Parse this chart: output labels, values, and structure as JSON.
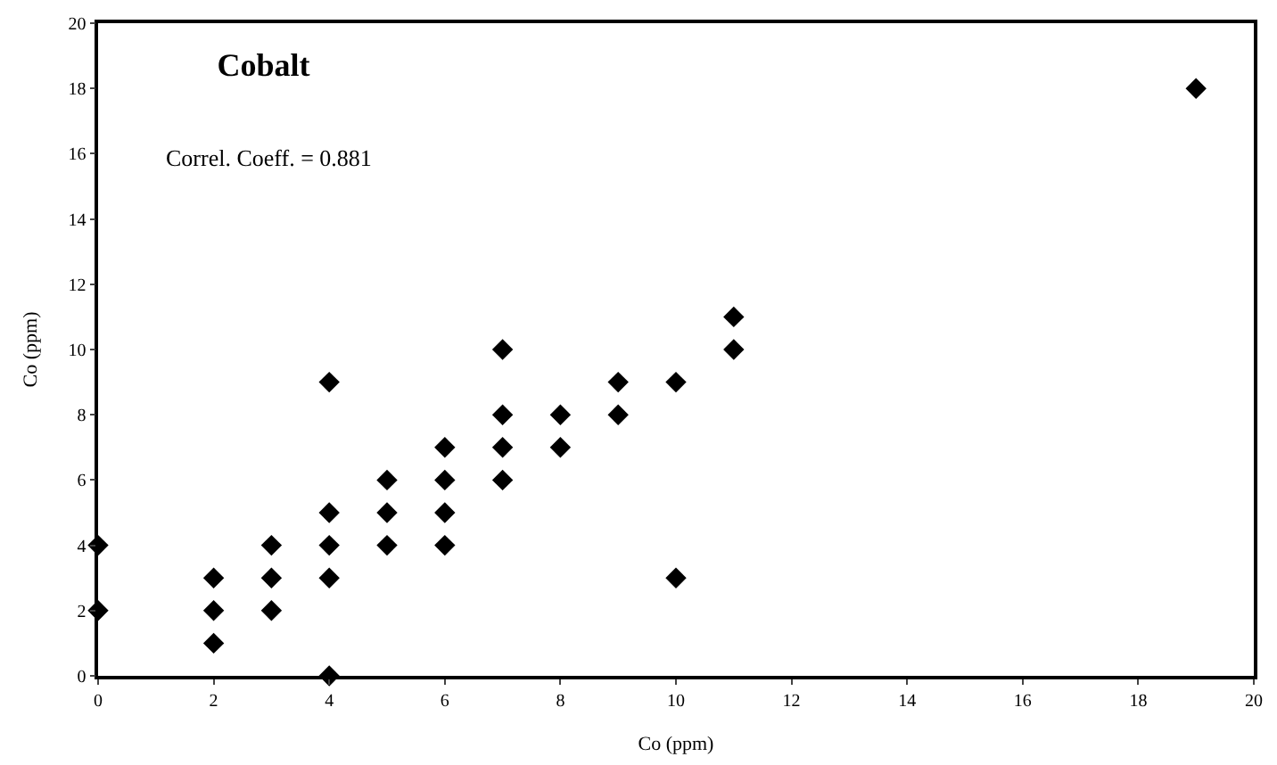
{
  "chart_data": {
    "type": "scatter",
    "title": "Cobalt",
    "xlabel": "Co (ppm)",
    "ylabel": "Co (ppm)",
    "annotations": [
      "Correl. Coeff. = 0.881"
    ],
    "x": [
      0,
      0,
      2,
      2,
      2,
      3,
      3,
      3,
      4,
      4,
      4,
      4,
      4,
      5,
      5,
      5,
      6,
      6,
      6,
      6,
      7,
      7,
      7,
      7,
      8,
      8,
      9,
      9,
      10,
      10,
      11,
      11,
      19
    ],
    "values": [
      4,
      2,
      3,
      2,
      1,
      4,
      3,
      2,
      9,
      5,
      4,
      3,
      0,
      6,
      5,
      4,
      7,
      6,
      5,
      4,
      10,
      8,
      7,
      6,
      8,
      7,
      9,
      8,
      9,
      3,
      11,
      10,
      18
    ],
    "color": "#000000",
    "marker": "diamond",
    "xlim": [
      0,
      20
    ],
    "ylim": [
      0,
      20
    ],
    "xticks": [
      0,
      2,
      4,
      6,
      8,
      10,
      12,
      14,
      16,
      18,
      20
    ],
    "yticks": [
      0,
      2,
      4,
      6,
      8,
      10,
      12,
      14,
      16,
      18,
      20
    ],
    "legend": false
  }
}
